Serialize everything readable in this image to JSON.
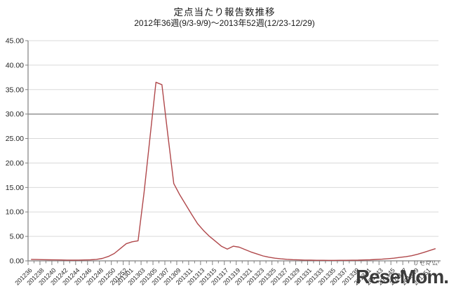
{
  "chart": {
    "title": "定点当たり報告数推移",
    "subtitle": "2012年36週(9/3-9/9)～2013年52週(12/23-12/29)"
  },
  "watermark": {
    "text": "ReseMom.",
    "small_text": "リセマム"
  },
  "chart_data": {
    "type": "line",
    "title": "定点当たり報告数推移",
    "subtitle": "2012年36週(9/3-9/9)～2013年52週(12/23-12/29)",
    "xlabel": "",
    "ylabel": "",
    "ylim": [
      0,
      45
    ],
    "y_tick_step": 5,
    "y_tick_labels": [
      "0.00",
      "5.00",
      "10.00",
      "15.00",
      "20.00",
      "25.00",
      "30.00",
      "35.00",
      "40.00",
      "45.00"
    ],
    "emphasized_gridline_value": 30,
    "grid": true,
    "legend_position": "none",
    "line_color": "#b0484b",
    "grid_color": "#d9d9d9",
    "emph_grid_color": "#999999",
    "axis_color": "#808080",
    "label_color": "#262626",
    "x": [
      "201236",
      "201237",
      "201238",
      "201239",
      "201240",
      "201241",
      "201242",
      "201243",
      "201244",
      "201245",
      "201246",
      "201247",
      "201248",
      "201249",
      "201250",
      "201251",
      "201252",
      "201301",
      "201302",
      "201303",
      "201304",
      "201305",
      "201306",
      "201307",
      "201308",
      "201309",
      "201310",
      "201311",
      "201312",
      "201313",
      "201314",
      "201315",
      "201316",
      "201317",
      "201318",
      "201319",
      "201320",
      "201321",
      "201322",
      "201323",
      "201324",
      "201325",
      "201326",
      "201327",
      "201328",
      "201329",
      "201330",
      "201331",
      "201332",
      "201333",
      "201334",
      "201335",
      "201336",
      "201337",
      "201338",
      "201339",
      "201340",
      "201341",
      "201342",
      "201343",
      "201344",
      "201345",
      "201346",
      "201347",
      "201348",
      "201349",
      "201350",
      "201351",
      "201352"
    ],
    "values": [
      0.3,
      0.27,
      0.25,
      0.22,
      0.2,
      0.18,
      0.16,
      0.15,
      0.16,
      0.18,
      0.22,
      0.3,
      0.5,
      0.9,
      1.5,
      2.5,
      3.5,
      3.9,
      4.1,
      13.9,
      25.2,
      36.5,
      36.0,
      25.8,
      15.8,
      13.5,
      11.5,
      9.5,
      7.6,
      6.2,
      5.0,
      4.0,
      3.0,
      2.4,
      3.0,
      2.8,
      2.3,
      1.8,
      1.4,
      1.0,
      0.75,
      0.55,
      0.42,
      0.32,
      0.25,
      0.2,
      0.16,
      0.14,
      0.12,
      0.11,
      0.1,
      0.1,
      0.11,
      0.12,
      0.13,
      0.15,
      0.18,
      0.22,
      0.28,
      0.35,
      0.45,
      0.55,
      0.7,
      0.85,
      1.05,
      1.35,
      1.7,
      2.1,
      2.5
    ],
    "x_tick_labels": [
      "201236",
      "201238",
      "201240",
      "201242",
      "201244",
      "201246",
      "201248",
      "201250",
      "201252",
      "201301",
      "201303",
      "201305",
      "201307",
      "201309",
      "201311",
      "201313",
      "201315",
      "201317",
      "201319",
      "201321",
      "201323",
      "201325",
      "201327",
      "201329",
      "201331",
      "201333",
      "201335",
      "201337",
      "201339",
      "201341",
      "201343",
      "201345",
      "201347",
      "201349",
      "201351"
    ]
  }
}
